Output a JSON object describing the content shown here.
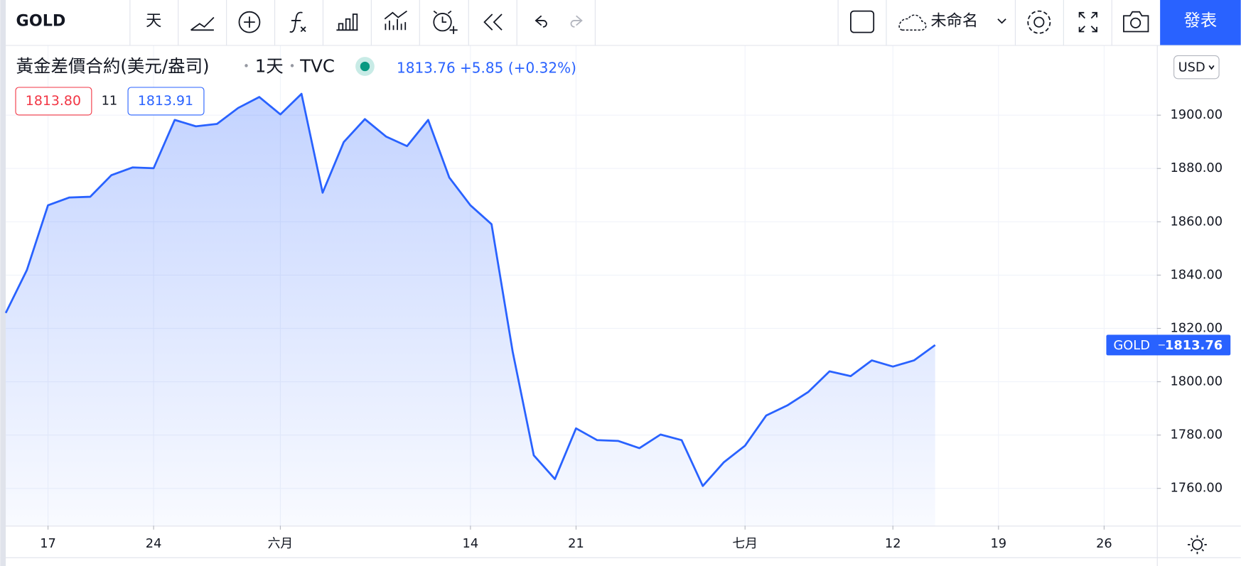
{
  "toolbar": {
    "symbol": "GOLD",
    "interval": "天",
    "layout_name": "未命名",
    "publish": "發表"
  },
  "legend": {
    "title": "黃金差價合約(美元/盎司)",
    "interval": "1天",
    "source": "TVC",
    "price": "1813.76",
    "change": "+5.85",
    "change_pct": "(+0.32%)",
    "bid": "1813.80",
    "spread": "11",
    "ask": "1813.91"
  },
  "currency": "USD",
  "price_label": "GOLD",
  "chart_data": {
    "type": "area",
    "series": [
      {
        "name": "GOLD",
        "color": "#2962ff",
        "values": [
          1825.8,
          1841.9,
          1866.2,
          1869.1,
          1869.4,
          1877.5,
          1880.4,
          1880.1,
          1898.2,
          1895.8,
          1896.7,
          1902.7,
          1906.8,
          1900.3,
          1908.0,
          1870.9,
          1889.9,
          1898.5,
          1892.0,
          1888.4,
          1898.2,
          1876.6,
          1866.2,
          1859.1,
          1811.3,
          1772.4,
          1763.5,
          1782.5,
          1778.1,
          1777.8,
          1775.1,
          1780.2,
          1778.1,
          1760.9,
          1769.8,
          1776.0,
          1787.3,
          1791.1,
          1796.2,
          1803.9,
          1802.1,
          1808.0,
          1805.7,
          1808.0,
          1813.76
        ]
      }
    ],
    "xlim": [
      0,
      54.5
    ],
    "xticks": [
      {
        "value": 2,
        "label": "17"
      },
      {
        "value": 7,
        "label": "24"
      },
      {
        "value": 13,
        "label": "六月"
      },
      {
        "value": 22,
        "label": "14"
      },
      {
        "value": 27,
        "label": "21"
      },
      {
        "value": 35,
        "label": "七月"
      },
      {
        "value": 42,
        "label": "12"
      },
      {
        "value": 47,
        "label": "19"
      },
      {
        "value": 52,
        "label": "26"
      }
    ],
    "ylim": [
      1746,
      1926
    ],
    "yticks": [
      {
        "value": 1760,
        "label": "1760.00"
      },
      {
        "value": 1780,
        "label": "1780.00"
      },
      {
        "value": 1800,
        "label": "1800.00"
      },
      {
        "value": 1820,
        "label": "1820.00"
      },
      {
        "value": 1840,
        "label": "1840.00"
      },
      {
        "value": 1860,
        "label": "1860.00"
      },
      {
        "value": 1880,
        "label": "1880.00"
      },
      {
        "value": 1900,
        "label": "1900.00"
      }
    ],
    "grid": true
  }
}
